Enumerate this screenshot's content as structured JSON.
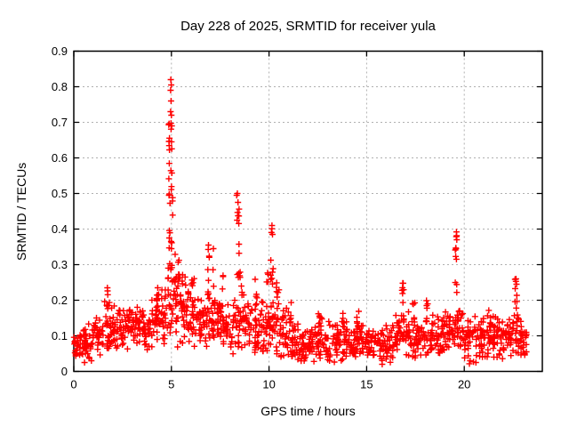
{
  "chart_data": {
    "type": "scatter",
    "title": "Day 228 of 2025, SRMTID for receiver yula",
    "xlabel": "GPS time / hours",
    "ylabel": "SRMTID / TECUs",
    "xlim": [
      0,
      24
    ],
    "ylim": [
      0,
      0.9
    ],
    "xtick_values": [
      0,
      5,
      10,
      15,
      20
    ],
    "xtick_labels": [
      "0",
      "5",
      "10",
      "15",
      "20"
    ],
    "ytick_values": [
      0,
      0.1,
      0.2,
      0.3,
      0.4,
      0.5,
      0.6,
      0.7,
      0.8,
      0.9
    ],
    "ytick_labels": [
      "0",
      "0.1",
      "0.2",
      "0.3",
      "0.4",
      "0.5",
      "0.6",
      "0.7",
      "0.8",
      "0.9"
    ],
    "grid": true,
    "legend": "none",
    "marker": "plus",
    "marker_size_px": 7,
    "colors": {
      "marker": "#ff0000",
      "grid": "#b0b0b0",
      "border": "#000000",
      "background": "#ffffff",
      "text": "#000000"
    },
    "scatter": {
      "description": "Dense band of ~1600 points, 0 to 23.2 h, mostly 0.05-0.2 TECUs; large TID spike near 5 h peaking 0.82, secondary spikes at 8.4 h (0.50), 10.2 h (0.41), 19.6 h (0.39), 22.65 h (0.26).",
      "baseline_bins": [
        [
          0.0,
          0.5,
          0.07,
          0.03,
          30
        ],
        [
          0.5,
          1.0,
          0.08,
          0.04,
          30
        ],
        [
          1.0,
          1.5,
          0.11,
          0.05,
          30
        ],
        [
          1.5,
          2.0,
          0.125,
          0.055,
          32
        ],
        [
          2.0,
          2.5,
          0.12,
          0.05,
          30
        ],
        [
          2.5,
          3.0,
          0.125,
          0.05,
          30
        ],
        [
          3.0,
          3.5,
          0.13,
          0.05,
          32
        ],
        [
          3.5,
          4.0,
          0.13,
          0.055,
          30
        ],
        [
          4.0,
          4.5,
          0.145,
          0.06,
          32
        ],
        [
          4.5,
          5.0,
          0.16,
          0.07,
          30
        ],
        [
          5.0,
          5.5,
          0.18,
          0.08,
          30
        ],
        [
          5.5,
          6.0,
          0.17,
          0.07,
          32
        ],
        [
          6.0,
          6.5,
          0.15,
          0.06,
          32
        ],
        [
          6.5,
          7.0,
          0.15,
          0.065,
          30
        ],
        [
          7.0,
          7.5,
          0.14,
          0.06,
          30
        ],
        [
          7.5,
          8.0,
          0.125,
          0.055,
          30
        ],
        [
          8.0,
          8.5,
          0.13,
          0.06,
          30
        ],
        [
          8.5,
          9.0,
          0.135,
          0.06,
          32
        ],
        [
          9.0,
          9.5,
          0.12,
          0.055,
          30
        ],
        [
          9.5,
          10.0,
          0.12,
          0.06,
          30
        ],
        [
          10.0,
          10.5,
          0.13,
          0.07,
          30
        ],
        [
          10.5,
          11.0,
          0.11,
          0.06,
          30
        ],
        [
          11.0,
          11.5,
          0.085,
          0.045,
          30
        ],
        [
          11.5,
          12.0,
          0.07,
          0.04,
          30
        ],
        [
          12.0,
          12.5,
          0.08,
          0.045,
          30
        ],
        [
          12.5,
          13.0,
          0.09,
          0.05,
          30
        ],
        [
          13.0,
          13.5,
          0.08,
          0.045,
          30
        ],
        [
          13.5,
          14.0,
          0.09,
          0.05,
          30
        ],
        [
          14.0,
          14.5,
          0.085,
          0.045,
          30
        ],
        [
          14.5,
          15.0,
          0.09,
          0.045,
          30
        ],
        [
          15.0,
          15.5,
          0.08,
          0.04,
          28
        ],
        [
          15.5,
          16.0,
          0.07,
          0.045,
          28
        ],
        [
          16.0,
          16.5,
          0.08,
          0.045,
          28
        ],
        [
          16.5,
          17.0,
          0.1,
          0.05,
          30
        ],
        [
          17.0,
          17.5,
          0.1,
          0.05,
          30
        ],
        [
          17.5,
          18.0,
          0.09,
          0.045,
          28
        ],
        [
          18.0,
          18.5,
          0.1,
          0.05,
          30
        ],
        [
          18.5,
          19.0,
          0.1,
          0.05,
          30
        ],
        [
          19.0,
          19.5,
          0.11,
          0.05,
          30
        ],
        [
          19.5,
          20.0,
          0.11,
          0.055,
          30
        ],
        [
          20.0,
          20.5,
          0.08,
          0.05,
          28
        ],
        [
          20.5,
          21.0,
          0.1,
          0.05,
          30
        ],
        [
          21.0,
          21.5,
          0.1,
          0.05,
          30
        ],
        [
          21.5,
          22.0,
          0.09,
          0.05,
          30
        ],
        [
          22.0,
          22.5,
          0.1,
          0.05,
          30
        ],
        [
          22.5,
          23.0,
          0.1,
          0.05,
          30
        ],
        [
          23.0,
          23.2,
          0.09,
          0.035,
          14
        ]
      ],
      "spikes": [
        [
          1.72,
          0.05,
          0.18,
          0.235,
          5
        ],
        [
          2.35,
          0.05,
          0.15,
          0.21,
          4
        ],
        [
          4.3,
          0.07,
          0.16,
          0.235,
          6
        ],
        [
          4.95,
          0.1,
          0.55,
          0.7,
          14
        ],
        [
          4.95,
          0.12,
          0.36,
          0.55,
          14
        ],
        [
          4.92,
          0.12,
          0.26,
          0.38,
          10
        ],
        [
          5.25,
          0.2,
          0.18,
          0.33,
          12
        ],
        [
          5.6,
          0.15,
          0.17,
          0.28,
          8
        ],
        [
          6.1,
          0.08,
          0.16,
          0.27,
          6
        ],
        [
          6.9,
          0.07,
          0.2,
          0.355,
          7
        ],
        [
          7.15,
          0.08,
          0.18,
          0.3,
          5
        ],
        [
          7.6,
          0.1,
          0.15,
          0.28,
          6
        ],
        [
          8.4,
          0.07,
          0.24,
          0.5,
          12
        ],
        [
          8.55,
          0.08,
          0.17,
          0.28,
          6
        ],
        [
          9.35,
          0.07,
          0.15,
          0.26,
          5
        ],
        [
          9.9,
          0.06,
          0.17,
          0.28,
          5
        ],
        [
          10.15,
          0.07,
          0.24,
          0.41,
          9
        ],
        [
          10.45,
          0.07,
          0.15,
          0.27,
          7
        ],
        [
          11.1,
          0.08,
          0.12,
          0.2,
          5
        ],
        [
          12.6,
          0.08,
          0.12,
          0.18,
          6
        ],
        [
          13.8,
          0.07,
          0.12,
          0.175,
          5
        ],
        [
          14.55,
          0.06,
          0.12,
          0.17,
          4
        ],
        [
          16.85,
          0.07,
          0.14,
          0.25,
          7
        ],
        [
          17.4,
          0.07,
          0.13,
          0.21,
          5
        ],
        [
          18.1,
          0.05,
          0.13,
          0.21,
          5
        ],
        [
          19.6,
          0.06,
          0.22,
          0.395,
          9
        ],
        [
          21.3,
          0.07,
          0.12,
          0.19,
          5
        ],
        [
          22.65,
          0.05,
          0.17,
          0.26,
          7
        ]
      ],
      "notable_points": [
        [
          4.97,
          0.82
        ],
        [
          4.99,
          0.805
        ],
        [
          4.96,
          0.79
        ],
        [
          4.98,
          0.76
        ],
        [
          4.96,
          0.73
        ],
        [
          5.0,
          0.72
        ],
        [
          5.02,
          0.69
        ],
        [
          8.38,
          0.5
        ],
        [
          8.41,
          0.475
        ],
        [
          10.15,
          0.41
        ],
        [
          10.18,
          0.385
        ],
        [
          19.6,
          0.392
        ],
        [
          19.62,
          0.37
        ],
        [
          19.58,
          0.345
        ],
        [
          22.65,
          0.26
        ],
        [
          22.68,
          0.245
        ],
        [
          16.85,
          0.248
        ],
        [
          6.9,
          0.355
        ],
        [
          7.15,
          0.345
        ],
        [
          1.72,
          0.235
        ],
        [
          4.3,
          0.235
        ]
      ],
      "low_outliers": [
        [
          0.55,
          0.025
        ],
        [
          0.9,
          0.03
        ],
        [
          11.8,
          0.03
        ],
        [
          12.3,
          0.028
        ],
        [
          13.1,
          0.03
        ],
        [
          15.8,
          0.02
        ],
        [
          20.3,
          0.03
        ],
        [
          20.6,
          0.025
        ],
        [
          23.1,
          0.05
        ]
      ]
    }
  }
}
